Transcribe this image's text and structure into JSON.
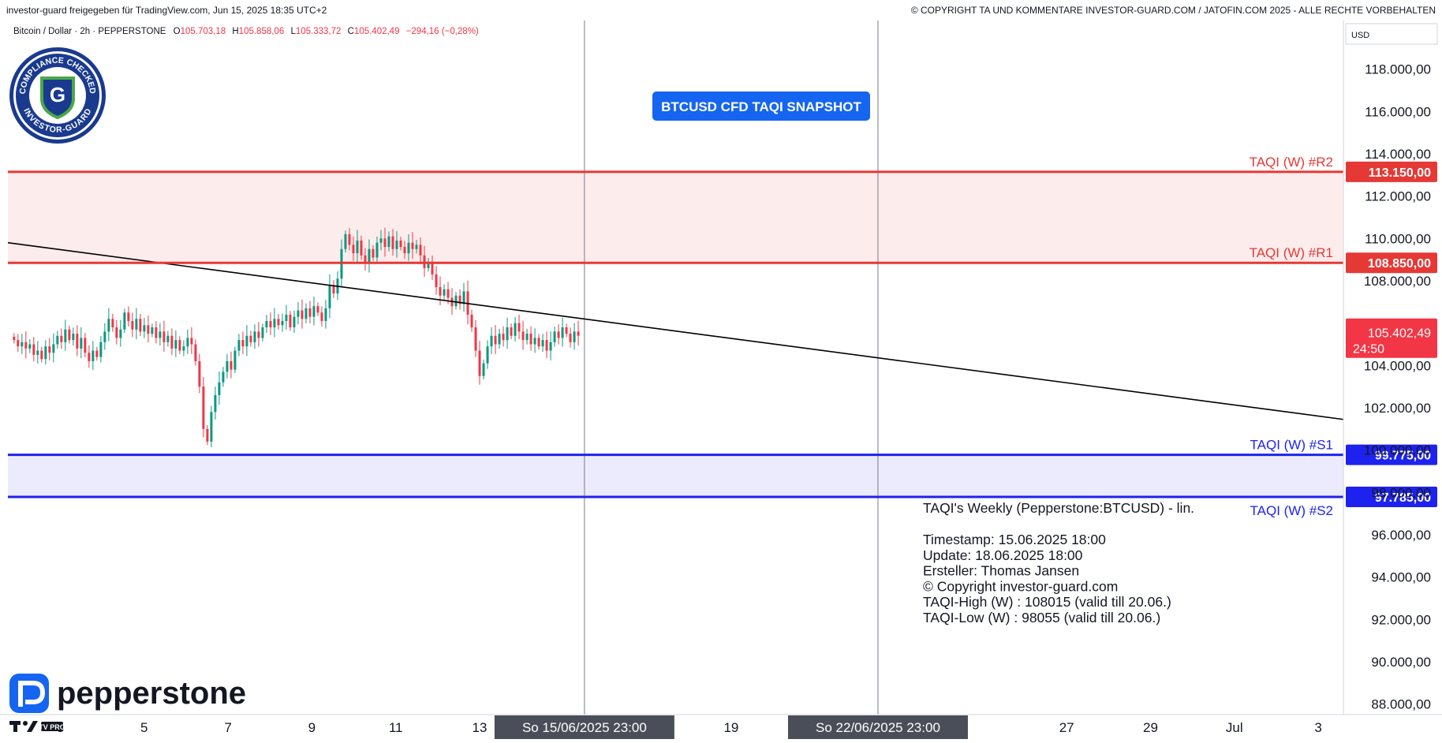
{
  "header": {
    "left_text": "investor-guard freigegeben für TradingView.com, Jun 15, 2025 18:35 UTC+2",
    "right_text": "© COPYRIGHT TA UND KOMMENTARE INVESTOR-GUARD.COM / JATOFIN.COM 2025 - ALLE RECHTE VORBEHALTEN"
  },
  "symbol_line": {
    "name": "Bitcoin / Dollar · 2h · PEPPERSTONE",
    "o_label": "O",
    "o": "105.703,18",
    "h_label": "H",
    "h": "105.858,06",
    "l_label": "L",
    "l": "105.333,72",
    "c_label": "C",
    "c": "105.402,49",
    "change": "−294,16 (−0,28%)"
  },
  "badge": {
    "text_top": "COMPLIANCE CHECKED",
    "text_bottom": "INVESTOR-GUARD",
    "letter": "G"
  },
  "snapshot_label": "BTCUSD CFD TAQI SNAPSHOT",
  "pepperstone_logo": "pepperstone",
  "tv_logo": "TV PRO",
  "currency": "USD",
  "info_box": {
    "title": "TAQI's Weekly (Pepperstone:BTCUSD) - lin.",
    "lines": [
      "Timestamp: 15.06.2025 18:00",
      "Update: 18.06.2025 18:00",
      "Ersteller: Thomas Jansen",
      "© Copyright investor-guard.com",
      "TAQI-High (W) : 108015 (valid till 20.06.)",
      "TAQI-Low (W) : 98055 (valid till 20.06.)"
    ]
  },
  "colors": {
    "up": "#089981",
    "down": "#f23645",
    "resistance": "#e53935",
    "support": "#1e22ee",
    "res_zone": "#fdecec",
    "sup_zone": "#ebebfd",
    "trend": "#000000",
    "snapshot_bg": "#1565f0"
  },
  "chart_data": {
    "type": "candlestick",
    "y_axis": {
      "min": 87500,
      "max": 120300,
      "ticks": [
        88000,
        90000,
        92000,
        94000,
        96000,
        98000,
        100000,
        102000,
        104000,
        106000,
        108000,
        110000,
        112000,
        114000,
        116000,
        118000
      ],
      "tick_labels": [
        "88.000,00",
        "90.000,00",
        "92.000,00",
        "94.000,00",
        "96.000,00",
        "98.000,00",
        "100.000,00",
        "102.000,00",
        "104.000,00",
        "106.000,00",
        "108.000,00",
        "110.000,00",
        "112.000,00",
        "114.000,00",
        "116.000,00",
        "118.000,00"
      ]
    },
    "x_axis": {
      "start_day": 1.75,
      "end_day": 33.6,
      "ticks": [
        {
          "day": 3,
          "label": "3"
        },
        {
          "day": 5,
          "label": "5"
        },
        {
          "day": 7,
          "label": "7"
        },
        {
          "day": 9,
          "label": "9"
        },
        {
          "day": 11,
          "label": "11"
        },
        {
          "day": 13,
          "label": "13"
        },
        {
          "day": 19,
          "label": "19"
        },
        {
          "day": 27,
          "label": "27"
        },
        {
          "day": 29,
          "label": "29"
        },
        {
          "day": 31,
          "label": "Jul"
        },
        {
          "day": 33,
          "label": "3"
        }
      ],
      "highlighted": [
        {
          "day": 15.5,
          "label": "So 15/06/2025   23:00"
        },
        {
          "day": 22.5,
          "label": "So 22/06/2025   23:00"
        }
      ]
    },
    "vertical_lines": [
      15.5,
      22.5
    ],
    "levels": [
      {
        "name": "TAQI (W) #R2",
        "value": 113150,
        "label": "113.150,00",
        "kind": "resistance"
      },
      {
        "name": "TAQI (W) #R1",
        "value": 108850,
        "label": "108.850,00",
        "kind": "resistance"
      },
      {
        "name": "TAQI (W) #S1",
        "value": 99775,
        "label": "99.775,00",
        "kind": "support"
      },
      {
        "name": "TAQI (W) #S2",
        "value": 97785,
        "label": "97.785,00",
        "kind": "support"
      }
    ],
    "zones": [
      {
        "from": 108850,
        "to": 113150,
        "kind": "resistance"
      },
      {
        "from": 97785,
        "to": 99775,
        "kind": "support"
      }
    ],
    "trendline": {
      "from_day": 1.75,
      "from_value": 109800,
      "to_day": 33.6,
      "to_value": 101450
    },
    "last_price": {
      "value": 105402.49,
      "label": "105.402,49",
      "countdown": "24:50"
    },
    "closes": [
      105200,
      104900,
      105100,
      104800,
      105000,
      104500,
      104700,
      104300,
      104900,
      104600,
      105000,
      105400,
      105100,
      105700,
      105200,
      105500,
      104800,
      105300,
      104600,
      104200,
      104700,
      104400,
      105100,
      105600,
      106200,
      105800,
      105300,
      105700,
      106500,
      106100,
      105700,
      106200,
      105600,
      105900,
      105500,
      105800,
      105300,
      105600,
      105100,
      105400,
      104800,
      105200,
      104700,
      104900,
      105300,
      105000,
      104200,
      103000,
      101000,
      100400,
      101800,
      102600,
      103200,
      103700,
      104200,
      103800,
      104700,
      105200,
      104900,
      105400,
      105100,
      105600,
      105300,
      105800,
      106100,
      105800,
      106200,
      105900,
      106100,
      106400,
      105800,
      106300,
      106600,
      106200,
      106700,
      106300,
      106800,
      106500,
      106100,
      106700,
      107800,
      107400,
      108100,
      109500,
      110200,
      109700,
      109300,
      109900,
      109200,
      108800,
      109500,
      109100,
      109800,
      110000,
      109600,
      110100,
      109500,
      109900,
      109600,
      109300,
      109800,
      109500,
      109700,
      109200,
      108600,
      108900,
      108300,
      107700,
      107300,
      107600,
      107200,
      106800,
      107300,
      106900,
      107500,
      106400,
      105800,
      104700,
      103500,
      104100,
      104900,
      105400,
      105000,
      105500,
      105200,
      105800,
      105400,
      106000,
      105600,
      105200,
      105500,
      105000,
      105300,
      104900,
      105200,
      104700,
      105100,
      105600,
      105300,
      105800,
      105500,
      105100,
      105600,
      105402
    ]
  }
}
